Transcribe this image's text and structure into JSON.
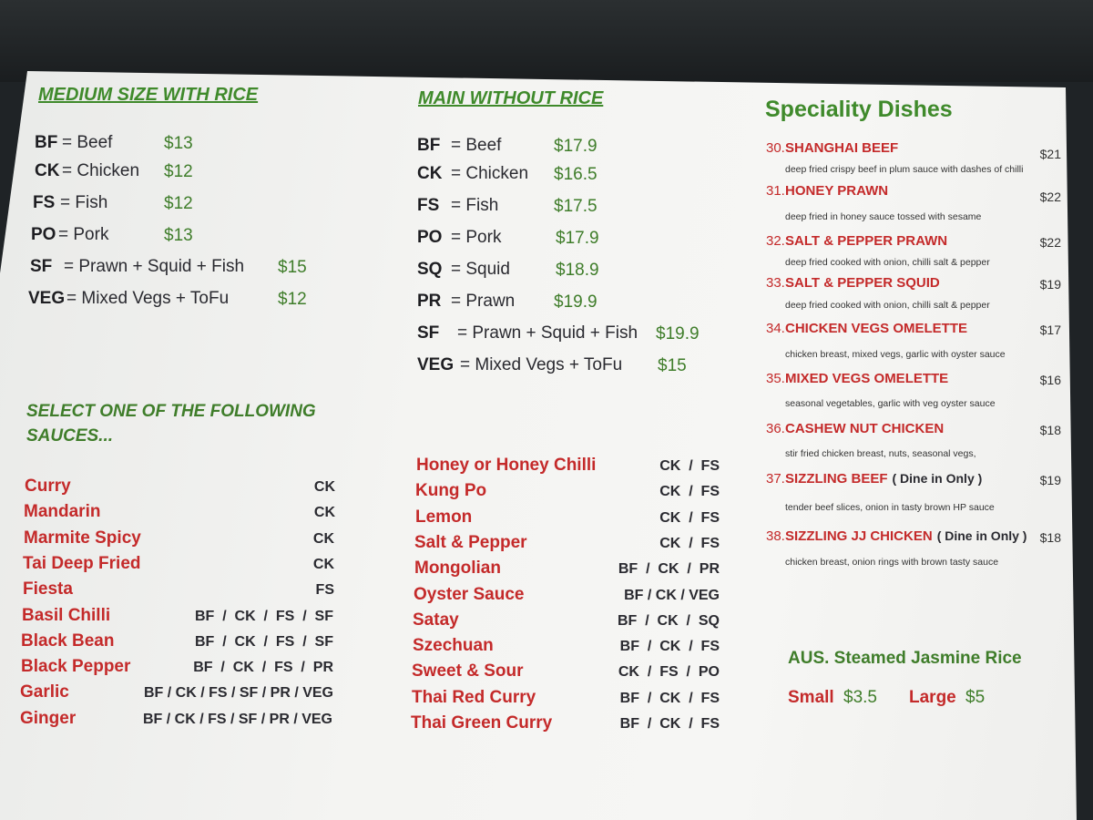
{
  "medium": {
    "title": "MEDIUM SIZE WITH RICE",
    "items": [
      {
        "code": "BF",
        "name": "= Beef",
        "price": "$13"
      },
      {
        "code": "CK",
        "name": "= Chicken",
        "price": "$12"
      },
      {
        "code": "FS",
        "name": "= Fish",
        "price": "$12"
      },
      {
        "code": "PO",
        "name": "= Pork",
        "price": "$13"
      },
      {
        "code": "SF",
        "name": "= Prawn + Squid + Fish",
        "price": "$15"
      },
      {
        "code": "VEG",
        "name": "= Mixed Vegs + ToFu",
        "price": "$12"
      }
    ]
  },
  "main": {
    "title": "MAIN WITHOUT RICE",
    "items": [
      {
        "code": "BF",
        "name": "= Beef",
        "price": "$17.9"
      },
      {
        "code": "CK",
        "name": "= Chicken",
        "price": "$16.5"
      },
      {
        "code": "FS",
        "name": "= Fish",
        "price": "$17.5"
      },
      {
        "code": "PO",
        "name": "= Pork",
        "price": "$17.9"
      },
      {
        "code": "SQ",
        "name": "= Squid",
        "price": "$18.9"
      },
      {
        "code": "PR",
        "name": "= Prawn",
        "price": "$19.9"
      },
      {
        "code": "SF",
        "name": "= Prawn + Squid + Fish",
        "price": "$19.9"
      },
      {
        "code": "VEG",
        "name": "= Mixed Vegs + ToFu",
        "price": "$15"
      }
    ]
  },
  "sauces": {
    "title_line1": "SELECT ONE OF THE FOLLOWING",
    "title_line2": "SAUCES...",
    "left": [
      {
        "name": "Curry",
        "codes": "CK"
      },
      {
        "name": "Mandarin",
        "codes": "CK"
      },
      {
        "name": "Marmite Spicy",
        "codes": "CK"
      },
      {
        "name": "Tai Deep Fried",
        "codes": "CK"
      },
      {
        "name": "Fiesta",
        "codes": "FS"
      },
      {
        "name": "Basil Chilli",
        "codes": "BF  /  CK  /  FS  /  SF"
      },
      {
        "name": "Black Bean",
        "codes": "BF  /  CK  /  FS  /  SF"
      },
      {
        "name": "Black Pepper",
        "codes": "BF  /  CK  /  FS  /  PR"
      },
      {
        "name": "Garlic",
        "codes": "BF / CK / FS / SF / PR / VEG"
      },
      {
        "name": "Ginger",
        "codes": "BF / CK / FS / SF / PR / VEG"
      }
    ],
    "right": [
      {
        "name": "Honey or Honey Chilli",
        "codes": "CK  /  FS"
      },
      {
        "name": "Kung Po",
        "codes": "CK  /  FS"
      },
      {
        "name": "Lemon",
        "codes": "CK  /  FS"
      },
      {
        "name": "Salt & Pepper",
        "codes": "CK  /  FS"
      },
      {
        "name": "Mongolian",
        "codes": "BF  /  CK  /  PR"
      },
      {
        "name": "Oyster Sauce",
        "codes": "BF / CK / VEG"
      },
      {
        "name": "Satay",
        "codes": "BF  /  CK  /  SQ"
      },
      {
        "name": "Szechuan",
        "codes": "BF  /  CK  /  FS"
      },
      {
        "name": "Sweet & Sour",
        "codes": "CK  /  FS  /  PO"
      },
      {
        "name": "Thai Red Curry",
        "codes": "BF  /  CK  /  FS"
      },
      {
        "name": "Thai Green Curry",
        "codes": "BF  /  CK  /  FS"
      }
    ]
  },
  "speciality": {
    "title": "Speciality Dishes",
    "items": [
      {
        "num": "30.",
        "name": "SHANGHAI BEEF",
        "note": "",
        "price": "$21",
        "desc": "deep fried crispy beef in plum sauce with dashes of chilli"
      },
      {
        "num": "31.",
        "name": "HONEY PRAWN",
        "note": "",
        "price": "$22",
        "desc": "deep fried in honey sauce tossed with sesame"
      },
      {
        "num": "32.",
        "name": "SALT & PEPPER PRAWN",
        "note": "",
        "price": "$22",
        "desc": "deep fried cooked with onion, chilli salt & pepper"
      },
      {
        "num": "33.",
        "name": "SALT & PEPPER SQUID",
        "note": "",
        "price": "$19",
        "desc": "deep fried cooked with onion, chilli salt & pepper"
      },
      {
        "num": "34.",
        "name": "CHICKEN VEGS OMELETTE",
        "note": "",
        "price": "$17",
        "desc": "chicken breast, mixed vegs, garlic with oyster sauce"
      },
      {
        "num": "35.",
        "name": "MIXED VEGS OMELETTE",
        "note": "",
        "price": "$16",
        "desc": "seasonal vegetables, garlic with veg oyster sauce"
      },
      {
        "num": "36.",
        "name": "CASHEW NUT CHICKEN",
        "note": "",
        "price": "$18",
        "desc": "stir fried chicken breast, nuts, seasonal vegs,"
      },
      {
        "num": "37.",
        "name": "SIZZLING BEEF",
        "note": "( Dine in Only )",
        "price": "$19",
        "desc": "tender beef slices, onion in tasty brown HP sauce"
      },
      {
        "num": "38.",
        "name": "SIZZLING JJ CHICKEN",
        "note": "( Dine in Only )",
        "price": "$18",
        "desc": "chicken breast, onion rings with brown tasty sauce"
      }
    ]
  },
  "rice": {
    "title": "AUS. Steamed Jasmine Rice",
    "small_label": "Small",
    "small_price": "$3.5",
    "large_label": "Large",
    "large_price": "$5"
  },
  "colors": {
    "heading_green": "#3f8a2b",
    "dish_red": "#c42a2a",
    "background_dark": "#1f2326",
    "paper": "#f4f4f2"
  }
}
